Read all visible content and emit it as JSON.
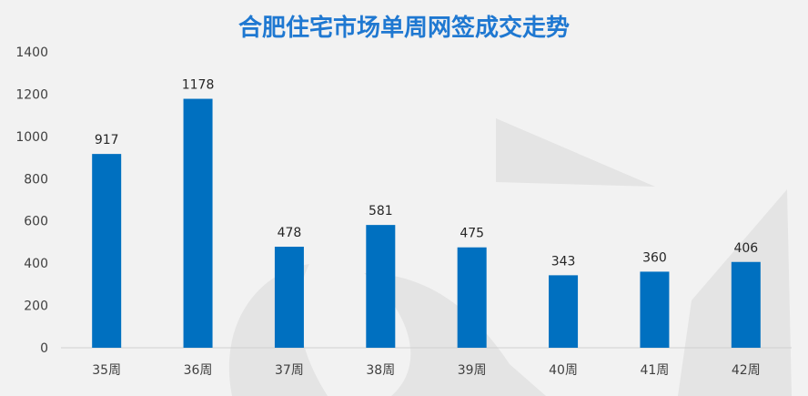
{
  "chart_data": {
    "type": "bar",
    "title": "合肥住宅市场单周网签成交走势",
    "categories": [
      "35周",
      "36周",
      "37周",
      "38周",
      "39周",
      "40周",
      "41周",
      "42周"
    ],
    "values": [
      917,
      1178,
      478,
      581,
      475,
      343,
      360,
      406
    ],
    "yticks": [
      "0",
      "200",
      "400",
      "600",
      "800",
      "1000",
      "1200",
      "1400"
    ],
    "ylim": [
      0,
      1400
    ],
    "grid": false,
    "legend": "none",
    "colors": {
      "bar": "#0070c0",
      "title": "#1f78d1",
      "background": "#f2f2f2"
    }
  }
}
